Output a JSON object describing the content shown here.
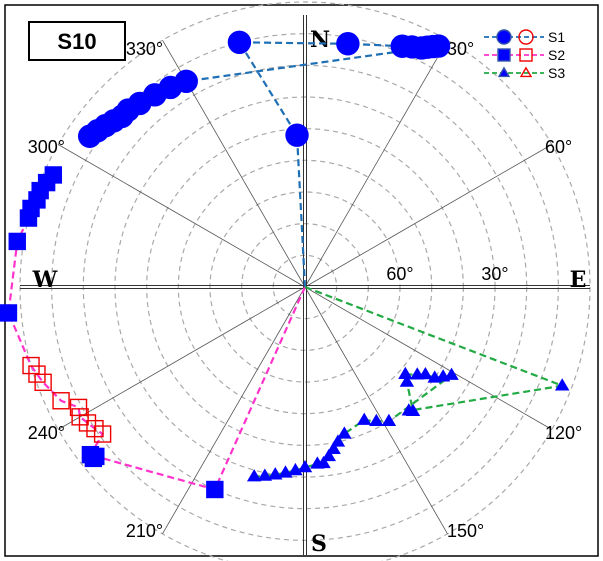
{
  "chart_data": {
    "type": "polar-scatter",
    "panel_label": "S10",
    "cardinals": {
      "north": "N",
      "east": "E",
      "south": "S",
      "west": "W"
    },
    "angle_labels": [
      {
        "text": "330°",
        "angle": 330
      },
      {
        "text": "30°",
        "angle": 30
      },
      {
        "text": "300°",
        "angle": 300
      },
      {
        "text": "60°",
        "angle": 60
      },
      {
        "text": "240°",
        "angle": 240
      },
      {
        "text": "120°",
        "angle": 120
      },
      {
        "text": "210°",
        "angle": 210
      },
      {
        "text": "150°",
        "angle": 150
      }
    ],
    "radial_labels": [
      {
        "text": "60°",
        "value": 60
      },
      {
        "text": "30°",
        "value": 30
      }
    ],
    "radial_axis": {
      "center_value": 90,
      "edge_value": 0,
      "ring_step": 10,
      "grid": "dashed"
    },
    "series": [
      {
        "name": "S1",
        "color": "#0000ff",
        "line_color": "#1f6fb5",
        "marker": "circle",
        "points": [
          {
            "az": 357,
            "el": 42
          },
          {
            "az": 345,
            "el": 10
          },
          {
            "az": 10,
            "el": 12
          },
          {
            "az": 22,
            "el": 8
          },
          {
            "az": 24,
            "el": 7
          },
          {
            "az": 26,
            "el": 6
          },
          {
            "az": 27,
            "el": 5
          },
          {
            "az": 28,
            "el": 4
          },
          {
            "az": 29,
            "el": 3
          },
          {
            "az": 330,
            "el": 15
          },
          {
            "az": 326,
            "el": 14
          },
          {
            "az": 322,
            "el": 13
          },
          {
            "az": 318,
            "el": 12
          },
          {
            "az": 315,
            "el": 11
          },
          {
            "az": 313,
            "el": 11
          },
          {
            "az": 311,
            "el": 10
          },
          {
            "az": 309,
            "el": 9
          },
          {
            "az": 307,
            "el": 8
          },
          {
            "az": 305,
            "el": 7
          }
        ]
      },
      {
        "name": "S2",
        "color": "#0000ff",
        "line_color": "#ff33cc",
        "marker": "square",
        "points": [
          {
            "az": 204,
            "el": 20
          },
          {
            "az": 231,
            "el": 5
          },
          {
            "az": 231,
            "el": 4
          },
          {
            "az": 232,
            "el": 4
          },
          {
            "az": 234,
            "el": 11
          },
          {
            "az": 236,
            "el": 10
          },
          {
            "az": 238,
            "el": 9
          },
          {
            "az": 240,
            "el": 8
          },
          {
            "az": 242,
            "el": 9
          },
          {
            "az": 245,
            "el": 5
          },
          {
            "az": 250,
            "el": 2
          },
          {
            "az": 252,
            "el": 1
          },
          {
            "az": 254,
            "el": 0
          },
          {
            "az": 265,
            "el": -4
          },
          {
            "az": 279,
            "el": -2
          },
          {
            "az": 284,
            "el": 0
          },
          {
            "az": 286,
            "el": 0
          },
          {
            "az": 288,
            "el": 1
          },
          {
            "az": 290,
            "el": 1
          },
          {
            "az": 292,
            "el": 2
          },
          {
            "az": 294,
            "el": 3
          }
        ]
      },
      {
        "name": "S3",
        "color": "#0000ff",
        "line_color": "#22aa44",
        "marker": "triangle",
        "points": [
          {
            "az": 111,
            "el": 3
          },
          {
            "az": 140,
            "el": 39
          },
          {
            "az": 139,
            "el": 38
          },
          {
            "az": 133,
            "el": 46
          },
          {
            "az": 131,
            "el": 48
          },
          {
            "az": 128,
            "el": 45
          },
          {
            "az": 126,
            "el": 43
          },
          {
            "az": 125,
            "el": 40
          },
          {
            "az": 123,
            "el": 38
          },
          {
            "az": 121,
            "el": 36
          },
          {
            "az": 148,
            "el": 40
          },
          {
            "az": 152,
            "el": 42
          },
          {
            "az": 156,
            "el": 44
          },
          {
            "az": 165,
            "el": 42
          },
          {
            "az": 168,
            "el": 40
          },
          {
            "az": 170,
            "el": 38
          },
          {
            "az": 172,
            "el": 36
          },
          {
            "az": 174,
            "el": 34
          },
          {
            "az": 176,
            "el": 34
          },
          {
            "az": 180,
            "el": 33
          },
          {
            "az": 183,
            "el": 32
          },
          {
            "az": 186,
            "el": 31
          },
          {
            "az": 189,
            "el": 30
          },
          {
            "az": 192,
            "el": 29
          },
          {
            "az": 195,
            "el": 28
          }
        ]
      }
    ],
    "legend": {
      "position": "top-right",
      "entries": [
        "S1",
        "S2",
        "S3"
      ]
    }
  }
}
